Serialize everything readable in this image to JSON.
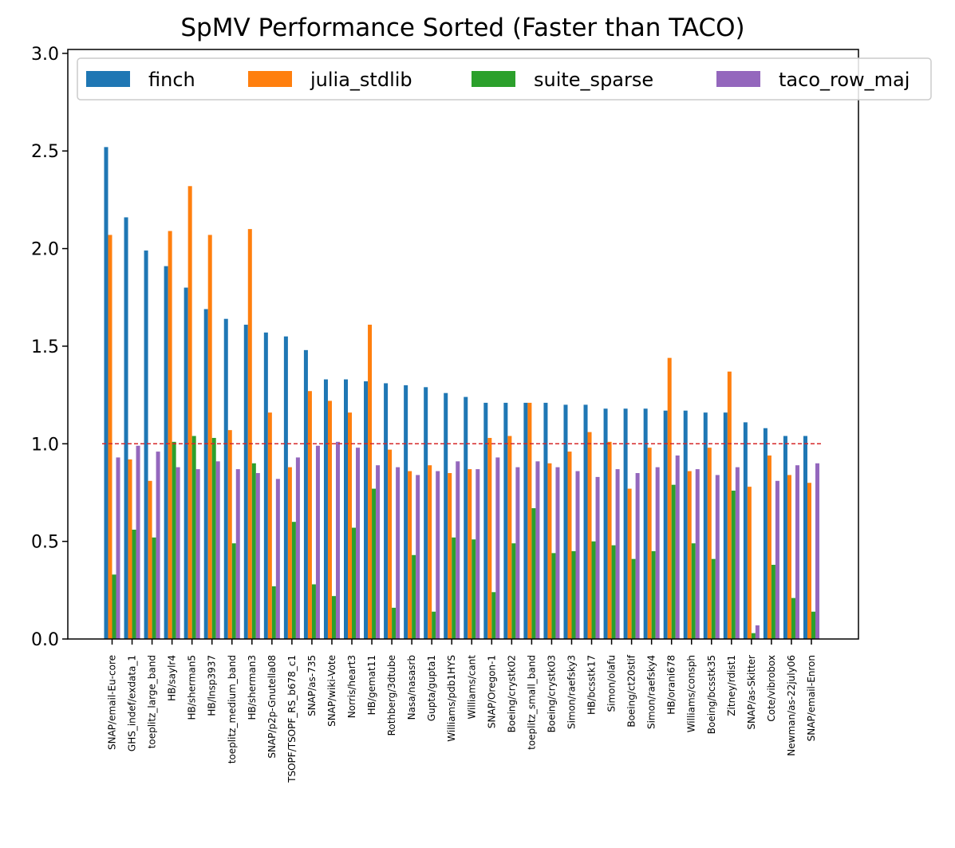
{
  "chart_data": {
    "type": "bar",
    "title": "SpMV Performance Sorted (Faster than TACO)",
    "xlabel": "",
    "ylabel": "",
    "ylim": [
      0,
      3.0
    ],
    "yticks": [
      0.0,
      0.5,
      1.0,
      1.5,
      2.0,
      2.5,
      3.0
    ],
    "reference_line": {
      "y": 1.0,
      "color": "#d62728",
      "style": "dashed"
    },
    "legend": {
      "placement": "top",
      "ncol": 4
    },
    "grid": false,
    "categories": [
      "SNAP/email-Eu-core",
      "GHS_indef/exdata_1",
      "toeplitz_large_band",
      "HB/saylr4",
      "HB/sherman5",
      "HB/lnsp3937",
      "toeplitz_medium_band",
      "HB/sherman3",
      "SNAP/p2p-Gnutella08",
      "TSOPF/TSOPF_RS_b678_c1",
      "SNAP/as-735",
      "SNAP/wiki-Vote",
      "Norris/heart3",
      "HB/gemat11",
      "Rothberg/3dtube",
      "Nasa/nasasrb",
      "Gupta/gupta1",
      "Williams/pdb1HYS",
      "Williams/cant",
      "SNAP/Oregon-1",
      "Boeing/crystk02",
      "toeplitz_small_band",
      "Boeing/crystk03",
      "Simon/raefsky3",
      "HB/bcsstk17",
      "Simon/olafu",
      "Boeing/ct20stif",
      "Simon/raefsky4",
      "HB/orani678",
      "Williams/consph",
      "Boeing/bcsstk35",
      "Zitney/rdist1",
      "SNAP/as-Skitter",
      "Cote/vibrobox",
      "Newman/as-22july06",
      "SNAP/email-Enron"
    ],
    "series": [
      {
        "name": "finch",
        "color": "#1f77b4",
        "values": [
          2.52,
          2.16,
          1.99,
          1.91,
          1.8,
          1.69,
          1.64,
          1.61,
          1.57,
          1.55,
          1.48,
          1.33,
          1.33,
          1.32,
          1.31,
          1.3,
          1.29,
          1.26,
          1.24,
          1.21,
          1.21,
          1.21,
          1.21,
          1.2,
          1.2,
          1.18,
          1.18,
          1.18,
          1.17,
          1.17,
          1.16,
          1.16,
          1.11,
          1.08,
          1.04,
          1.04
        ]
      },
      {
        "name": "julia_stdlib",
        "color": "#ff7f0e",
        "values": [
          2.07,
          0.92,
          0.81,
          2.09,
          2.32,
          2.07,
          1.07,
          2.1,
          1.16,
          0.88,
          1.27,
          1.22,
          1.16,
          1.61,
          0.97,
          0.86,
          0.89,
          0.85,
          0.87,
          1.03,
          1.04,
          1.21,
          0.9,
          0.96,
          1.06,
          1.01,
          0.77,
          0.98,
          1.44,
          0.86,
          0.98,
          1.37,
          0.78,
          0.94,
          0.84,
          0.8
        ]
      },
      {
        "name": "suite_sparse",
        "color": "#2ca02c",
        "values": [
          0.33,
          0.56,
          0.52,
          1.01,
          1.04,
          1.03,
          0.49,
          0.9,
          0.27,
          0.6,
          0.28,
          0.22,
          0.57,
          0.77,
          0.16,
          0.43,
          0.14,
          0.52,
          0.51,
          0.24,
          0.49,
          0.67,
          0.44,
          0.45,
          0.5,
          0.48,
          0.41,
          0.45,
          0.79,
          0.49,
          0.41,
          0.76,
          0.03,
          0.38,
          0.21,
          0.14
        ]
      },
      {
        "name": "taco_row_maj",
        "color": "#9467bd",
        "values": [
          0.93,
          0.99,
          0.96,
          0.88,
          0.87,
          0.91,
          0.87,
          0.85,
          0.82,
          0.93,
          0.99,
          1.01,
          0.98,
          0.89,
          0.88,
          0.84,
          0.86,
          0.91,
          0.87,
          0.93,
          0.88,
          0.91,
          0.88,
          0.86,
          0.83,
          0.87,
          0.85,
          0.88,
          0.94,
          0.87,
          0.84,
          0.88,
          0.07,
          0.81,
          0.89,
          0.9
        ]
      }
    ]
  }
}
